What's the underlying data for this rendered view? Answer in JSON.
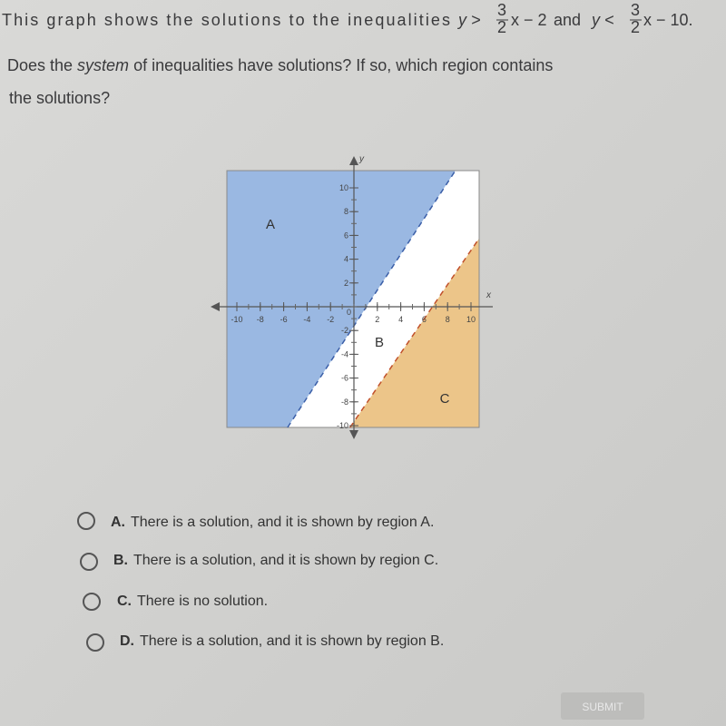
{
  "question": {
    "intro": "This graph shows the solutions to the inequalities",
    "inequality_1": {
      "lhs": "y >",
      "numerator": "3",
      "denominator": "2",
      "rhs": "x − 2"
    },
    "joiner": "and",
    "inequality_2": {
      "lhs": "y <",
      "numerator": "3",
      "denominator": "2",
      "rhs": "x − 10."
    },
    "line_2_start": "Does the",
    "line_2_emphasis": "system",
    "line_2_end": "of inequalities have solutions? If so, which region contains",
    "line_3": "the solutions?"
  },
  "graph": {
    "x_axis_label": "x",
    "y_axis_label": "y",
    "origin_label": "0",
    "xticks": [
      -10,
      -8,
      -6,
      -4,
      -2,
      2,
      4,
      6,
      8,
      10
    ],
    "yticks": [
      -10,
      -8,
      -6,
      -4,
      -2,
      2,
      4,
      6,
      8,
      10
    ],
    "regions": [
      "A",
      "B",
      "C"
    ]
  },
  "options": [
    {
      "letter": "A.",
      "text": "There is a solution, and it is shown by region A."
    },
    {
      "letter": "B.",
      "text": "There is a solution, and it is shown by region C."
    },
    {
      "letter": "C.",
      "text": "There is no solution."
    },
    {
      "letter": "D.",
      "text": "There is a solution, and it is shown by region B."
    }
  ],
  "submit": "SUBMIT"
}
